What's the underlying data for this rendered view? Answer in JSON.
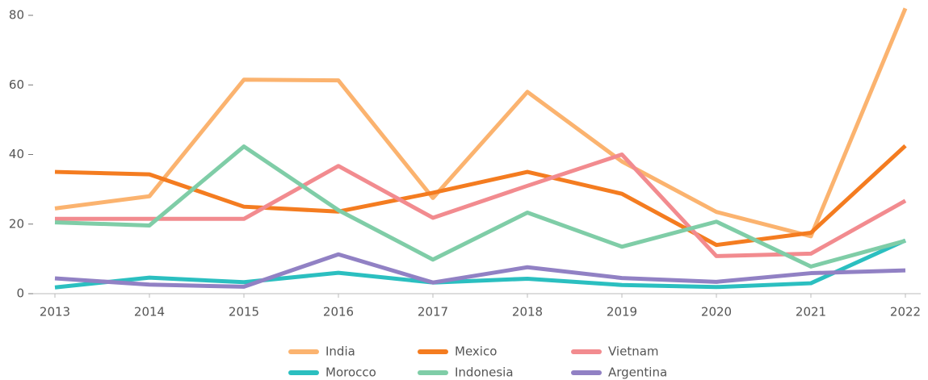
{
  "chart_data": {
    "type": "line",
    "x": [
      2013,
      2014,
      2015,
      2016,
      2017,
      2018,
      2019,
      2020,
      2021,
      2022
    ],
    "xlim": [
      2013,
      2022
    ],
    "xticks": [
      2013,
      2014,
      2015,
      2016,
      2017,
      2018,
      2019,
      2020,
      2021,
      2022
    ],
    "ylim": [
      0,
      83
    ],
    "yticks": [
      0,
      20,
      40,
      60,
      80
    ],
    "grid": false,
    "legend": "bottom",
    "series": [
      {
        "name": "India",
        "color": "#fbb36f",
        "values": [
          24.5,
          28,
          61.5,
          61.3,
          27.5,
          58,
          38,
          23.5,
          16.5,
          82
        ]
      },
      {
        "name": "Mexico",
        "color": "#f47c20",
        "values": [
          35,
          34.3,
          25,
          23.6,
          29,
          35,
          28.7,
          14,
          17.5,
          42.5
        ]
      },
      {
        "name": "Vietnam",
        "color": "#f28b8f",
        "values": [
          21.5,
          21.5,
          21.5,
          36.7,
          21.8,
          31,
          40,
          10.8,
          11.5,
          26.7
        ]
      },
      {
        "name": "Morocco",
        "color": "#2bbfc0",
        "values": [
          1.8,
          4.6,
          3.3,
          6,
          3.2,
          4.3,
          2.5,
          1.9,
          3,
          15.3
        ]
      },
      {
        "name": "Indonesia",
        "color": "#7fcda7",
        "values": [
          20.5,
          19.6,
          42.3,
          24,
          9.8,
          23.3,
          13.5,
          20.7,
          7.8,
          15.2
        ]
      },
      {
        "name": "Argentina",
        "color": "#9181c4",
        "values": [
          4.4,
          2.6,
          2,
          11.3,
          3.2,
          7.6,
          4.5,
          3.4,
          5.9,
          6.7
        ]
      }
    ]
  }
}
